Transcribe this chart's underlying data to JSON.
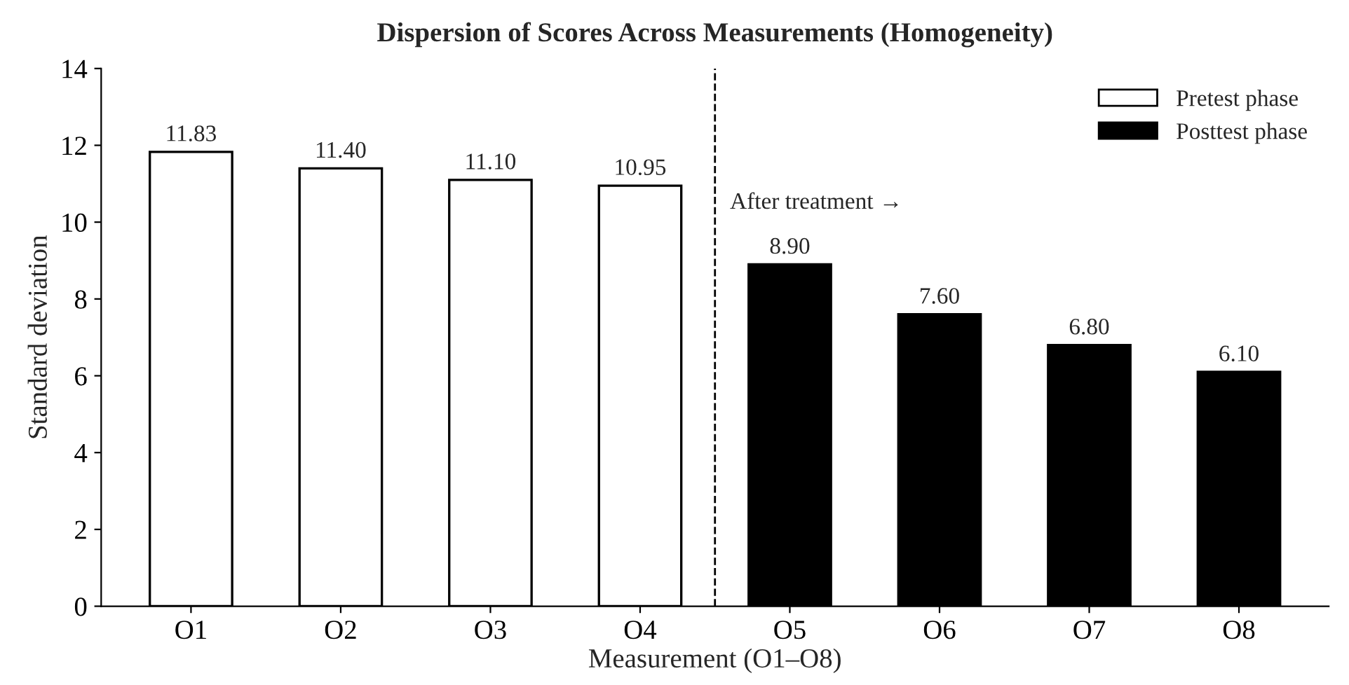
{
  "chart_data": {
    "type": "bar",
    "title": "Dispersion of Scores Across Measurements (Homogeneity)",
    "xlabel": "Measurement (O1–O8)",
    "ylabel": "Standard deviation",
    "categories": [
      "O1",
      "O2",
      "O3",
      "O4",
      "O5",
      "O6",
      "O7",
      "O8"
    ],
    "series": [
      {
        "name": "Pretest phase",
        "color": "#ffffff",
        "values": [
          11.83,
          11.4,
          11.1,
          10.95,
          null,
          null,
          null,
          null
        ],
        "value_labels": [
          "11.83",
          "11.40",
          "11.10",
          "10.95",
          null,
          null,
          null,
          null
        ]
      },
      {
        "name": "Posttest phase",
        "color": "#000000",
        "values": [
          null,
          null,
          null,
          null,
          8.9,
          7.6,
          6.8,
          6.1
        ],
        "value_labels": [
          null,
          null,
          null,
          null,
          "8.90",
          "7.60",
          "6.80",
          "6.10"
        ]
      }
    ],
    "ylim": [
      0,
      14
    ],
    "yticks": [
      0,
      2,
      4,
      6,
      8,
      10,
      12,
      14
    ],
    "annotations": [
      "After treatment →"
    ],
    "legend": "top right",
    "grid": false
  }
}
